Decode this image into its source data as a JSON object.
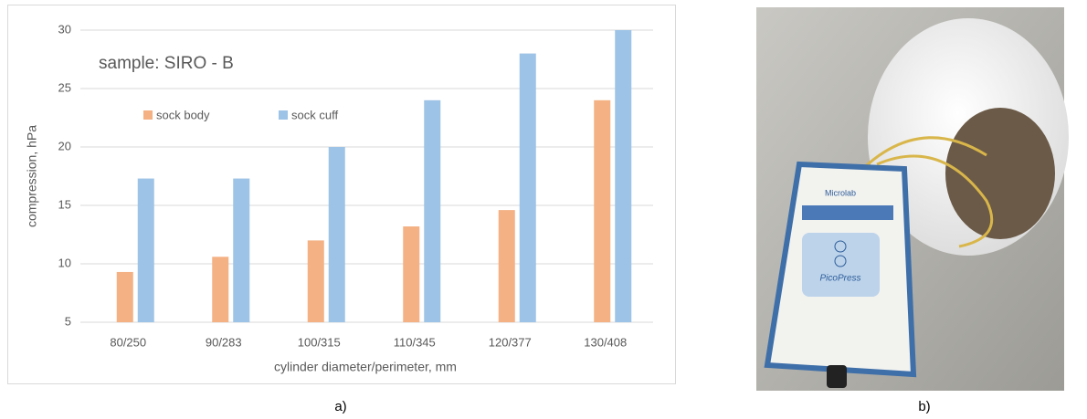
{
  "chart_data": {
    "type": "bar",
    "annotation": "sample: SIRO - B",
    "x_label": "cylinder diameter/perimeter,  mm",
    "y_label": "compression, hPa",
    "categories": [
      "80/250",
      "90/283",
      "100/315",
      "110/345",
      "120/377",
      "130/408"
    ],
    "series": [
      {
        "name": "sock body",
        "color": "#f4b183",
        "values": [
          9.3,
          10.6,
          12.0,
          13.2,
          14.6,
          24.0
        ]
      },
      {
        "name": "sock cuff",
        "color": "#9dc3e6",
        "values": [
          17.3,
          17.3,
          20.0,
          24.0,
          28.0,
          30.0
        ]
      }
    ],
    "ylim": [
      5,
      30
    ],
    "yticks": [
      5,
      10,
      15,
      20,
      25,
      30
    ],
    "grid": true
  },
  "photo": {
    "labels": [
      "Microlab",
      "PicoPress"
    ]
  },
  "captions": [
    "a)",
    "b)"
  ]
}
